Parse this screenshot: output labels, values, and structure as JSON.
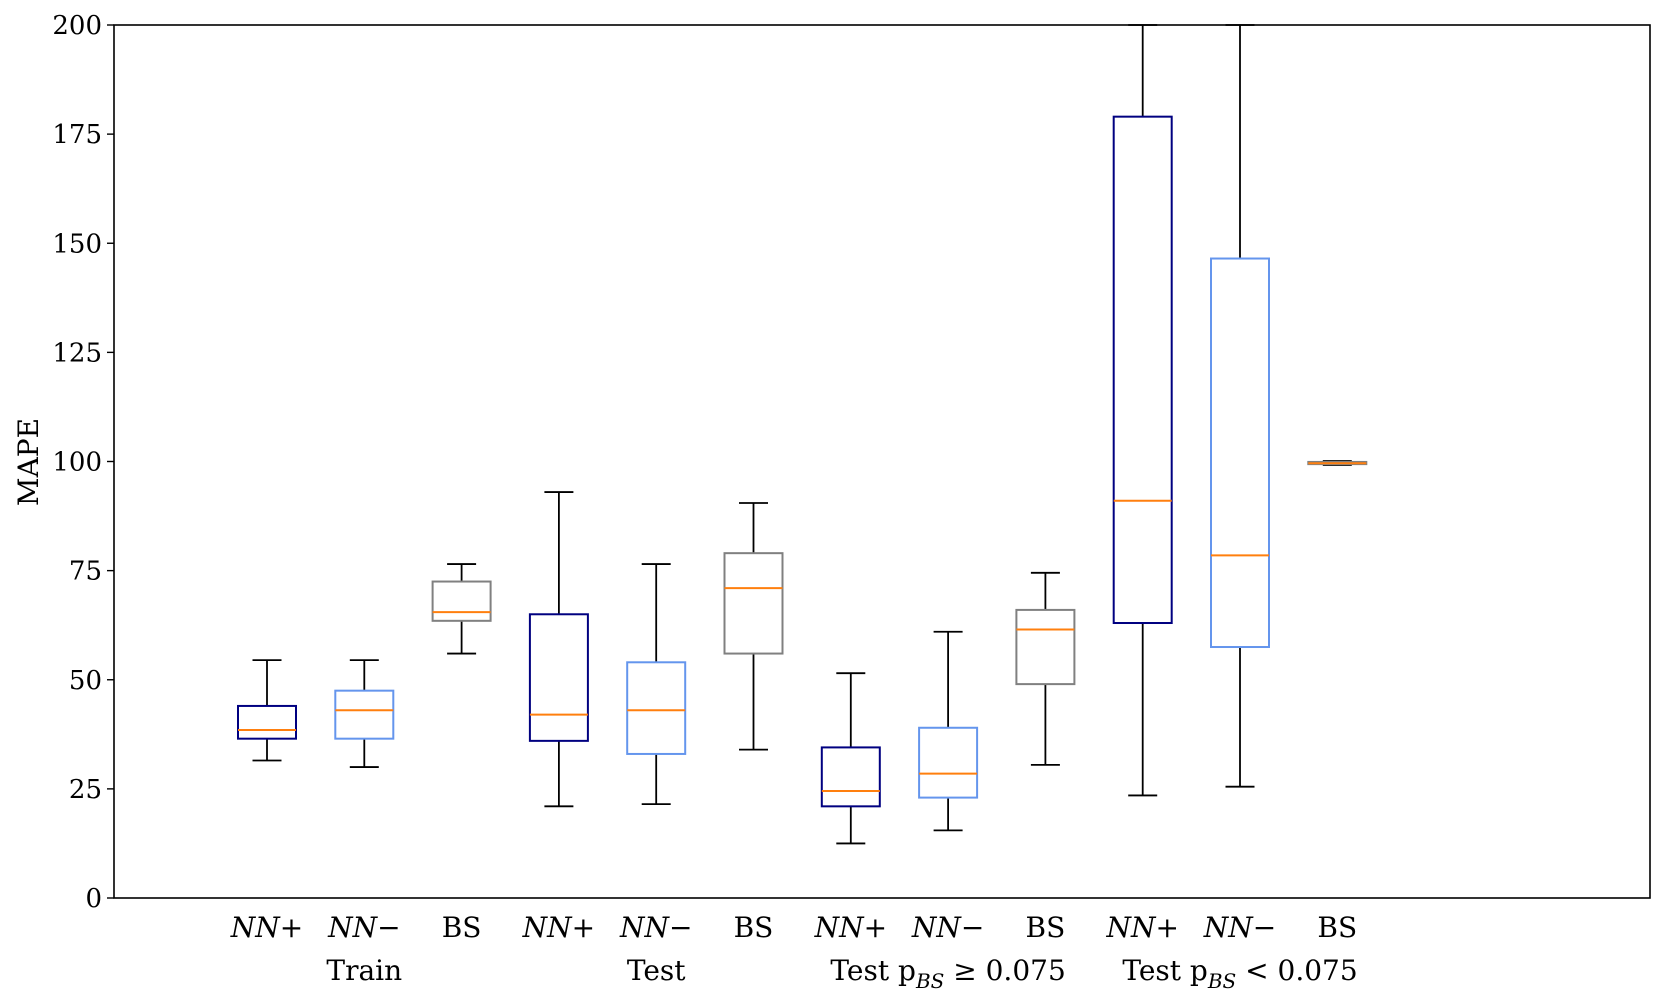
{
  "chart_data": {
    "type": "box",
    "title": "",
    "xlabel": "",
    "ylabel": "MAPE",
    "ylim": [
      0,
      200
    ],
    "yticks": [
      0,
      25,
      50,
      75,
      100,
      125,
      150,
      175,
      200
    ],
    "grid": false,
    "colors": {
      "nn_plus": "#000080",
      "nn_minus": "#6495ED",
      "bs": "#808080",
      "median": "#FF7F0E",
      "whisker": "#000000"
    },
    "groups": [
      {
        "label": "Train",
        "label_parts": {
          "text": "Train",
          "sub": "",
          "rest": ""
        },
        "boxes": [
          {
            "name": "NN+",
            "display": "NN+",
            "color": "#000080",
            "whisker_low": 31.5,
            "q1": 36.5,
            "median": 38.5,
            "q3": 44,
            "whisker_high": 54.5
          },
          {
            "name": "NN−",
            "display": "NN−",
            "color": "#6495ED",
            "whisker_low": 30,
            "q1": 36.5,
            "median": 43,
            "q3": 47.5,
            "whisker_high": 54.5
          },
          {
            "name": "BS",
            "display": "BS",
            "color": "#808080",
            "whisker_low": 56,
            "q1": 63.5,
            "median": 65.5,
            "q3": 72.5,
            "whisker_high": 76.5
          }
        ]
      },
      {
        "label": "Test",
        "label_parts": {
          "text": "Test",
          "sub": "",
          "rest": ""
        },
        "boxes": [
          {
            "name": "NN+",
            "display": "NN+",
            "color": "#000080",
            "whisker_low": 21,
            "q1": 36,
            "median": 42,
            "q3": 65,
            "whisker_high": 93
          },
          {
            "name": "NN−",
            "display": "NN−",
            "color": "#6495ED",
            "whisker_low": 21.5,
            "q1": 33,
            "median": 43,
            "q3": 54,
            "whisker_high": 76.5
          },
          {
            "name": "BS",
            "display": "BS",
            "color": "#808080",
            "whisker_low": 34,
            "q1": 56,
            "median": 71,
            "q3": 79,
            "whisker_high": 90.5
          }
        ]
      },
      {
        "label": "Test p_BS ≥ 0.075",
        "label_parts": {
          "text": "Test p",
          "sub": "BS",
          "rest": " ≥ 0.075"
        },
        "boxes": [
          {
            "name": "NN+",
            "display": "NN+",
            "color": "#000080",
            "whisker_low": 12.5,
            "q1": 21,
            "median": 24.5,
            "q3": 34.5,
            "whisker_high": 51.5
          },
          {
            "name": "NN−",
            "display": "NN−",
            "color": "#6495ED",
            "whisker_low": 15.5,
            "q1": 23,
            "median": 28.5,
            "q3": 39,
            "whisker_high": 61
          },
          {
            "name": "BS",
            "display": "BS",
            "color": "#808080",
            "whisker_low": 30.5,
            "q1": 49,
            "median": 61.5,
            "q3": 66,
            "whisker_high": 74.5
          }
        ]
      },
      {
        "label": "Test p_BS < 0.075",
        "label_parts": {
          "text": "Test p",
          "sub": "BS",
          "rest": " < 0.075"
        },
        "boxes": [
          {
            "name": "NN+",
            "display": "NN+",
            "color": "#000080",
            "whisker_low": 23.5,
            "q1": 63,
            "median": 91,
            "q3": 179,
            "whisker_high": 200
          },
          {
            "name": "NN−",
            "display": "NN−",
            "color": "#6495ED",
            "whisker_low": 25.5,
            "q1": 57.5,
            "median": 78.5,
            "q3": 146.5,
            "whisker_high": 200
          },
          {
            "name": "BS",
            "display": "BS",
            "color": "#808080",
            "whisker_low": 99.2,
            "q1": 99.4,
            "median": 99.6,
            "q3": 99.9,
            "whisker_high": 100.1
          }
        ]
      }
    ]
  }
}
